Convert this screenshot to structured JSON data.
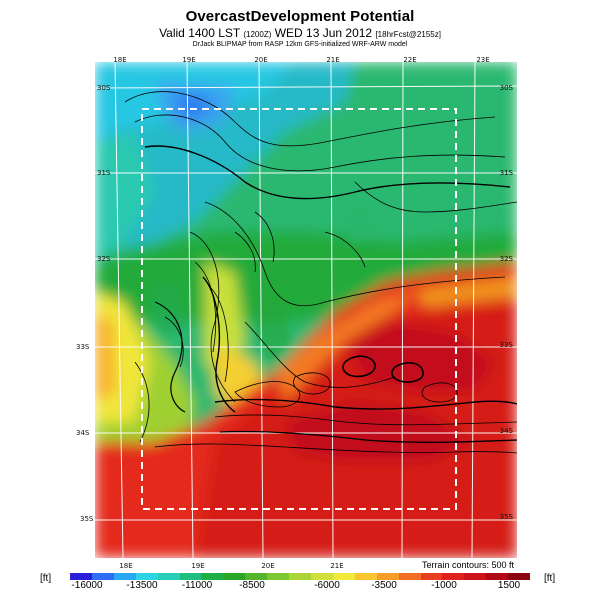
{
  "header": {
    "title": "OvercastDevelopment Potential",
    "subtitle_main": "Valid 1400 LST",
    "subtitle_small": "(1200Z)",
    "subtitle_date": "WED 13 Jun 2012",
    "subtitle_tail": "[18hrFcst@2155z]",
    "credit": "DrJack BLIPMAP from RASP 12km GFS-initialized WRF-ARW model"
  },
  "map": {
    "lon_ticks_top": [
      "18E",
      "19E",
      "20E",
      "21E",
      "22E",
      "23E"
    ],
    "lon_ticks_bottom": [
      "18E",
      "19E",
      "20E",
      "21E"
    ],
    "lat_ticks_left": [
      "30S",
      "31S",
      "32S",
      "33S",
      "34S",
      "35S"
    ],
    "lat_ticks_right": [
      "30S",
      "31S",
      "32S",
      "33S",
      "34S",
      "35S"
    ],
    "terrain_note": "Terrain contours: 500 ft"
  },
  "colorbar": {
    "unit": "[ft]",
    "labels": [
      "-16000",
      "-13500",
      "-11000",
      "-8500",
      "-6000",
      "-3500",
      "-1000",
      "1500"
    ],
    "colors": [
      "#2a1fd9",
      "#2d6ef2",
      "#2aa8f6",
      "#2cd4e4",
      "#29cfb8",
      "#21bf7f",
      "#1eaf45",
      "#2aa627",
      "#53b62a",
      "#7ec82f",
      "#a9d634",
      "#cfe03c",
      "#f2e83a",
      "#f9c531",
      "#f79c29",
      "#f26e22",
      "#ea3f1e",
      "#e0211c",
      "#cc1317",
      "#b20a14",
      "#8e0512"
    ]
  },
  "colors": {
    "land_fill_hint": "#e21d1a",
    "ocean_hint": "#28c3a8",
    "contour": "#000000",
    "grid": "#ffffff",
    "box": "#ffffff"
  }
}
